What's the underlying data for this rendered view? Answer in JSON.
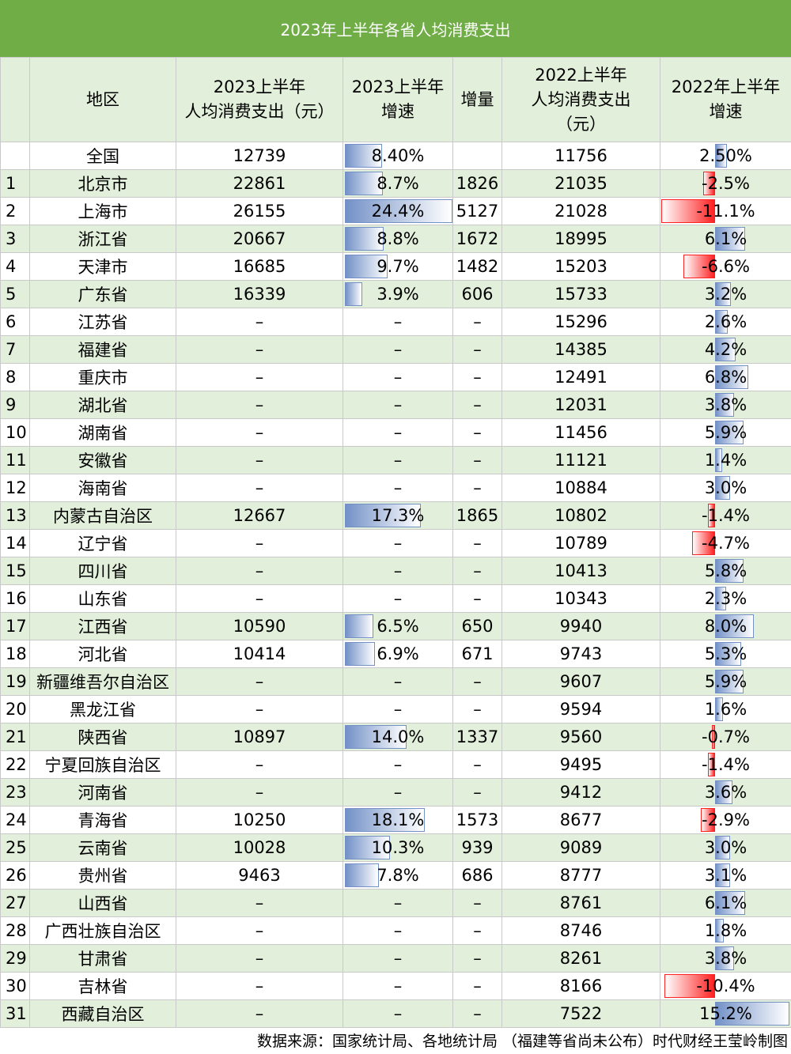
{
  "title": "2023年上半年各省人均消费支出",
  "headers": {
    "index": "",
    "region": "地区",
    "spend2023_l1": "2023上半年",
    "spend2023_l2": "人均消费支出（元）",
    "growth2023_l1": "2023上半年",
    "growth2023_l2": "增速",
    "increment": "增量",
    "spend2022_l1": "2022上半年",
    "spend2022_l2": "人均消费支出",
    "spend2022_l3": "（元）",
    "growth2022_l1": "2022年上半年",
    "growth2022_l2": "增速"
  },
  "colors": {
    "header_bg": "#70ad47",
    "band_bg": "#e2efda",
    "bar_positive": "#7391c7",
    "bar_negative": "#ff2020"
  },
  "rows": [
    {
      "idx": "",
      "region": "全国",
      "spend2023": "12739",
      "growth2023": "8.40%",
      "g23": 8.4,
      "incr": "",
      "spend2022": "11756",
      "growth2022": "2.50%",
      "g22": 2.5
    },
    {
      "idx": "1",
      "region": "北京市",
      "spend2023": "22861",
      "growth2023": "8.7%",
      "g23": 8.7,
      "incr": "1826",
      "spend2022": "21035",
      "growth2022": "-2.5%",
      "g22": -2.5
    },
    {
      "idx": "2",
      "region": "上海市",
      "spend2023": "26155",
      "growth2023": "24.4%",
      "g23": 24.4,
      "incr": "5127",
      "spend2022": "21028",
      "growth2022": "-11.1%",
      "g22": -11.1
    },
    {
      "idx": "3",
      "region": "浙江省",
      "spend2023": "20667",
      "growth2023": "8.8%",
      "g23": 8.8,
      "incr": "1672",
      "spend2022": "18995",
      "growth2022": "6.1%",
      "g22": 6.1
    },
    {
      "idx": "4",
      "region": "天津市",
      "spend2023": "16685",
      "growth2023": "9.7%",
      "g23": 9.7,
      "incr": "1482",
      "spend2022": "15203",
      "growth2022": "-6.6%",
      "g22": -6.6
    },
    {
      "idx": "5",
      "region": "广东省",
      "spend2023": "16339",
      "growth2023": "3.9%",
      "g23": 3.9,
      "incr": "606",
      "spend2022": "15733",
      "growth2022": "3.2%",
      "g22": 3.2
    },
    {
      "idx": "6",
      "region": "江苏省",
      "spend2023": "–",
      "growth2023": "–",
      "g23": null,
      "incr": "–",
      "spend2022": "15296",
      "growth2022": "2.6%",
      "g22": 2.6
    },
    {
      "idx": "7",
      "region": "福建省",
      "spend2023": "–",
      "growth2023": "–",
      "g23": null,
      "incr": "–",
      "spend2022": "14385",
      "growth2022": "4.2%",
      "g22": 4.2
    },
    {
      "idx": "8",
      "region": "重庆市",
      "spend2023": "–",
      "growth2023": "–",
      "g23": null,
      "incr": "–",
      "spend2022": "12491",
      "growth2022": "6.8%",
      "g22": 6.8
    },
    {
      "idx": "9",
      "region": "湖北省",
      "spend2023": "–",
      "growth2023": "–",
      "g23": null,
      "incr": "–",
      "spend2022": "12031",
      "growth2022": "3.8%",
      "g22": 3.8
    },
    {
      "idx": "10",
      "region": "湖南省",
      "spend2023": "–",
      "growth2023": "–",
      "g23": null,
      "incr": "–",
      "spend2022": "11456",
      "growth2022": "5.9%",
      "g22": 5.9
    },
    {
      "idx": "11",
      "region": "安徽省",
      "spend2023": "–",
      "growth2023": "–",
      "g23": null,
      "incr": "–",
      "spend2022": "11121",
      "growth2022": "1.4%",
      "g22": 1.4
    },
    {
      "idx": "12",
      "region": "海南省",
      "spend2023": "–",
      "growth2023": "–",
      "g23": null,
      "incr": "–",
      "spend2022": "10884",
      "growth2022": "3.0%",
      "g22": 3.0
    },
    {
      "idx": "13",
      "region": "内蒙古自治区",
      "spend2023": "12667",
      "growth2023": "17.3%",
      "g23": 17.3,
      "incr": "1865",
      "spend2022": "10802",
      "growth2022": "-1.4%",
      "g22": -1.4
    },
    {
      "idx": "14",
      "region": "辽宁省",
      "spend2023": "–",
      "growth2023": "–",
      "g23": null,
      "incr": "–",
      "spend2022": "10789",
      "growth2022": "-4.7%",
      "g22": -4.7
    },
    {
      "idx": "15",
      "region": "四川省",
      "spend2023": "–",
      "growth2023": "–",
      "g23": null,
      "incr": "–",
      "spend2022": "10413",
      "growth2022": "5.8%",
      "g22": 5.8
    },
    {
      "idx": "16",
      "region": "山东省",
      "spend2023": "–",
      "growth2023": "–",
      "g23": null,
      "incr": "–",
      "spend2022": "10343",
      "growth2022": "2.3%",
      "g22": 2.3
    },
    {
      "idx": "17",
      "region": "江西省",
      "spend2023": "10590",
      "growth2023": "6.5%",
      "g23": 6.5,
      "incr": "650",
      "spend2022": "9940",
      "growth2022": "8.0%",
      "g22": 8.0
    },
    {
      "idx": "18",
      "region": "河北省",
      "spend2023": "10414",
      "growth2023": "6.9%",
      "g23": 6.9,
      "incr": "671",
      "spend2022": "9743",
      "growth2022": "5.3%",
      "g22": 5.3
    },
    {
      "idx": "19",
      "region": "新疆维吾尔自治区",
      "spend2023": "–",
      "growth2023": "–",
      "g23": null,
      "incr": "–",
      "spend2022": "9607",
      "growth2022": "5.9%",
      "g22": 5.9
    },
    {
      "idx": "20",
      "region": "黑龙江省",
      "spend2023": "–",
      "growth2023": "–",
      "g23": null,
      "incr": "–",
      "spend2022": "9594",
      "growth2022": "1.6%",
      "g22": 1.6
    },
    {
      "idx": "21",
      "region": "陕西省",
      "spend2023": "10897",
      "growth2023": "14.0%",
      "g23": 14.0,
      "incr": "1337",
      "spend2022": "9560",
      "growth2022": "-0.7%",
      "g22": -0.7
    },
    {
      "idx": "22",
      "region": "宁夏回族自治区",
      "spend2023": "–",
      "growth2023": "–",
      "g23": null,
      "incr": "–",
      "spend2022": "9495",
      "growth2022": "-1.4%",
      "g22": -1.4
    },
    {
      "idx": "23",
      "region": "河南省",
      "spend2023": "–",
      "growth2023": "–",
      "g23": null,
      "incr": "–",
      "spend2022": "9412",
      "growth2022": "3.6%",
      "g22": 3.6
    },
    {
      "idx": "24",
      "region": "青海省",
      "spend2023": "10250",
      "growth2023": "18.1%",
      "g23": 18.1,
      "incr": "1573",
      "spend2022": "8677",
      "growth2022": "-2.9%",
      "g22": -2.9
    },
    {
      "idx": "25",
      "region": "云南省",
      "spend2023": "10028",
      "growth2023": "10.3%",
      "g23": 10.3,
      "incr": "939",
      "spend2022": "9089",
      "growth2022": "3.0%",
      "g22": 3.0
    },
    {
      "idx": "26",
      "region": "贵州省",
      "spend2023": "9463",
      "growth2023": "7.8%",
      "g23": 7.8,
      "incr": "686",
      "spend2022": "8777",
      "growth2022": "3.1%",
      "g22": 3.1
    },
    {
      "idx": "27",
      "region": "山西省",
      "spend2023": "–",
      "growth2023": "–",
      "g23": null,
      "incr": "–",
      "spend2022": "8761",
      "growth2022": "6.1%",
      "g22": 6.1
    },
    {
      "idx": "28",
      "region": "广西壮族自治区",
      "spend2023": "–",
      "growth2023": "–",
      "g23": null,
      "incr": "–",
      "spend2022": "8746",
      "growth2022": "1.8%",
      "g22": 1.8
    },
    {
      "idx": "29",
      "region": "甘肃省",
      "spend2023": "–",
      "growth2023": "–",
      "g23": null,
      "incr": "–",
      "spend2022": "8261",
      "growth2022": "3.8%",
      "g22": 3.8
    },
    {
      "idx": "30",
      "region": "吉林省",
      "spend2023": "–",
      "growth2023": "–",
      "g23": null,
      "incr": "–",
      "spend2022": "8166",
      "growth2022": "-10.4%",
      "g22": -10.4
    },
    {
      "idx": "31",
      "region": "西藏自治区",
      "spend2023": "–",
      "growth2023": "–",
      "g23": null,
      "incr": "–",
      "spend2022": "7522",
      "growth2022": "15.2%",
      "g22": 15.2
    }
  ],
  "footer": "数据来源：国家统计局、各地统计局 （福建等省尚未公布）时代财经王莹岭制图"
}
